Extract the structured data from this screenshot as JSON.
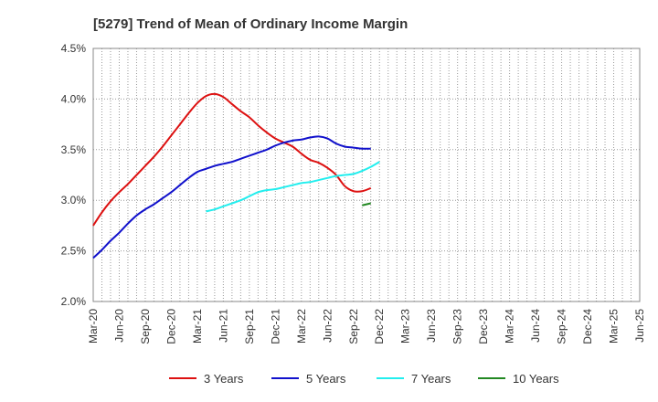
{
  "chart_data": {
    "type": "line",
    "title": "[5279]  Trend of Mean of Ordinary Income Margin",
    "xlabel": "",
    "ylabel": "",
    "ylim": [
      2.0,
      4.5
    ],
    "y_ticks": [
      "2.0%",
      "2.5%",
      "3.0%",
      "3.5%",
      "4.0%",
      "4.5%"
    ],
    "x_ticks": [
      "Mar-20",
      "Jun-20",
      "Sep-20",
      "Dec-20",
      "Mar-21",
      "Jun-21",
      "Sep-21",
      "Dec-21",
      "Mar-22",
      "Jun-22",
      "Sep-22",
      "Dec-22",
      "Mar-23",
      "Jun-23",
      "Sep-23",
      "Dec-23",
      "Mar-24",
      "Jun-24",
      "Sep-24",
      "Dec-24",
      "Mar-25",
      "Jun-25"
    ],
    "grid": true,
    "legend_position": "bottom",
    "series": [
      {
        "name": "3 Years",
        "color": "#dd1111",
        "start_index": 0,
        "values": [
          2.75,
          2.88,
          2.99,
          3.08,
          3.16,
          3.25,
          3.34,
          3.43,
          3.53,
          3.64,
          3.75,
          3.86,
          3.96,
          4.03,
          4.05,
          4.02,
          3.95,
          3.88,
          3.82,
          3.74,
          3.67,
          3.61,
          3.57,
          3.53,
          3.46,
          3.4,
          3.37,
          3.32,
          3.25,
          3.14,
          3.09,
          3.09,
          3.12
        ]
      },
      {
        "name": "5 Years",
        "color": "#1111cc",
        "start_index": 0,
        "values": [
          2.43,
          2.51,
          2.6,
          2.68,
          2.77,
          2.85,
          2.91,
          2.96,
          3.02,
          3.08,
          3.15,
          3.22,
          3.28,
          3.31,
          3.34,
          3.36,
          3.38,
          3.41,
          3.44,
          3.47,
          3.5,
          3.54,
          3.57,
          3.59,
          3.6,
          3.62,
          3.63,
          3.61,
          3.56,
          3.53,
          3.52,
          3.51,
          3.51
        ]
      },
      {
        "name": "7 Years",
        "color": "#22eeee",
        "start_index": 13,
        "values": [
          2.89,
          2.91,
          2.94,
          2.97,
          3.0,
          3.04,
          3.08,
          3.1,
          3.11,
          3.13,
          3.15,
          3.17,
          3.18,
          3.2,
          3.22,
          3.24,
          3.25,
          3.26,
          3.29,
          3.33,
          3.38
        ]
      },
      {
        "name": "10 Years",
        "color": "#228822",
        "start_index": 31,
        "values": [
          2.95,
          2.97
        ]
      }
    ]
  }
}
